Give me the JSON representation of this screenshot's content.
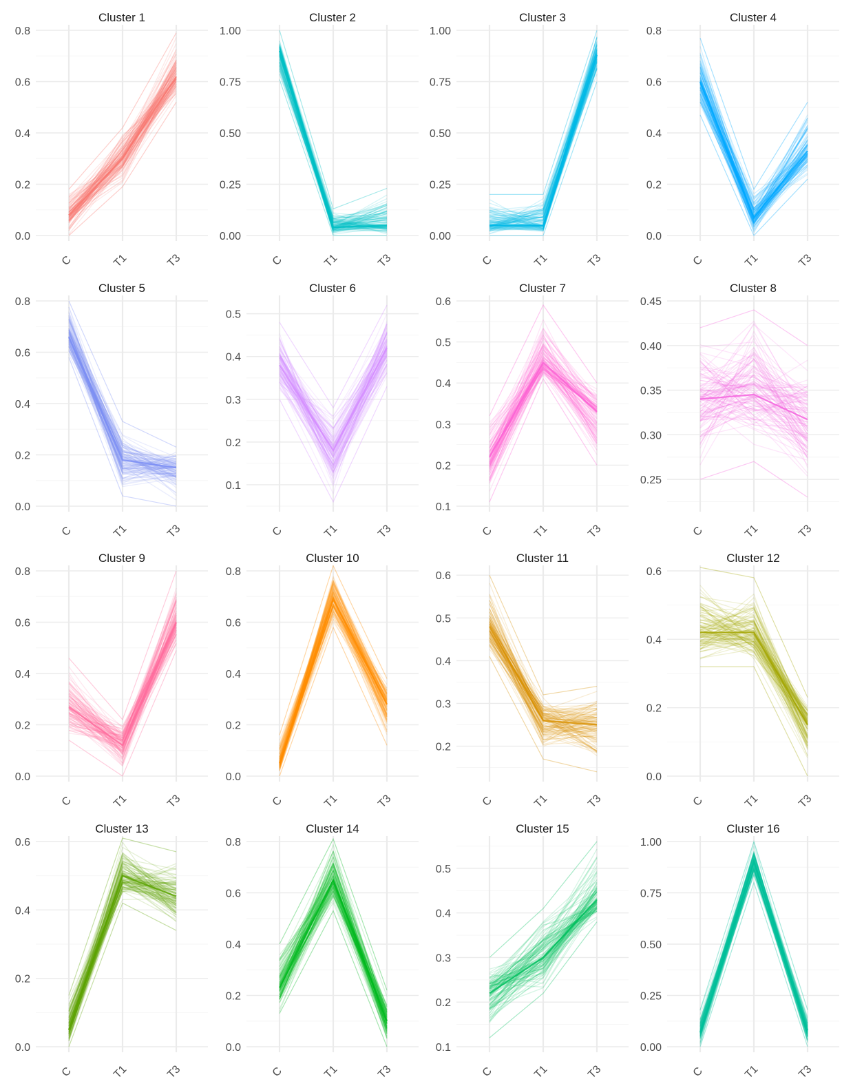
{
  "chart_data": [
    {
      "type": "line",
      "title": "Cluster 1",
      "categories": [
        "C",
        "T1",
        "T3"
      ],
      "yticks": [
        "0.0",
        "0.2",
        "0.4",
        "0.6",
        "0.8"
      ],
      "ylim": [
        0,
        0.8
      ],
      "color": "#F8766D",
      "ranges": [
        [
          0.0,
          0.18
        ],
        [
          0.19,
          0.42
        ],
        [
          0.52,
          0.79
        ]
      ],
      "median": [
        0.08,
        0.3,
        0.62
      ]
    },
    {
      "type": "line",
      "title": "Cluster 2",
      "categories": [
        "C",
        "T1",
        "T3"
      ],
      "yticks": [
        "0.00",
        "0.25",
        "0.50",
        "0.75",
        "1.00"
      ],
      "ylim": [
        0,
        1.0
      ],
      "color": "#00BFC4",
      "ranges": [
        [
          0.76,
          1.0
        ],
        [
          0.0,
          0.13
        ],
        [
          0.0,
          0.23
        ]
      ],
      "median": [
        0.9,
        0.04,
        0.05
      ]
    },
    {
      "type": "line",
      "title": "Cluster 3",
      "categories": [
        "C",
        "T1",
        "T3"
      ],
      "yticks": [
        "0.00",
        "0.25",
        "0.50",
        "0.75",
        "1.00"
      ],
      "ylim": [
        0,
        1.0
      ],
      "color": "#00B8E7",
      "ranges": [
        [
          0.0,
          0.2
        ],
        [
          0.0,
          0.2
        ],
        [
          0.75,
          1.0
        ]
      ],
      "median": [
        0.05,
        0.05,
        0.88
      ]
    },
    {
      "type": "line",
      "title": "Cluster 4",
      "categories": [
        "C",
        "T1",
        "T3"
      ],
      "yticks": [
        "0.0",
        "0.2",
        "0.4",
        "0.6",
        "0.8"
      ],
      "ylim": [
        0,
        0.8
      ],
      "color": "#00A9FF",
      "ranges": [
        [
          0.47,
          0.77
        ],
        [
          0.0,
          0.18
        ],
        [
          0.22,
          0.52
        ]
      ],
      "median": [
        0.6,
        0.07,
        0.33
      ]
    },
    {
      "type": "line",
      "title": "Cluster 5",
      "categories": [
        "C",
        "T1",
        "T3"
      ],
      "yticks": [
        "0.0",
        "0.2",
        "0.4",
        "0.6",
        "0.8"
      ],
      "ylim": [
        0,
        0.8
      ],
      "color": "#7B8EF5",
      "ranges": [
        [
          0.58,
          0.8
        ],
        [
          0.04,
          0.33
        ],
        [
          0.0,
          0.23
        ]
      ],
      "median": [
        0.66,
        0.18,
        0.15
      ]
    },
    {
      "type": "line",
      "title": "Cluster 6",
      "categories": [
        "C",
        "T1",
        "T3"
      ],
      "yticks": [
        "0.1",
        "0.2",
        "0.3",
        "0.4",
        "0.5"
      ],
      "ylim": [
        0.05,
        0.53
      ],
      "color": "#D58CFF",
      "ranges": [
        [
          0.3,
          0.48
        ],
        [
          0.06,
          0.28
        ],
        [
          0.33,
          0.52
        ]
      ],
      "median": [
        0.38,
        0.18,
        0.42
      ]
    },
    {
      "type": "line",
      "title": "Cluster 7",
      "categories": [
        "C",
        "T1",
        "T3"
      ],
      "yticks": [
        "0.1",
        "0.2",
        "0.3",
        "0.4",
        "0.5",
        "0.6"
      ],
      "ylim": [
        0.1,
        0.6
      ],
      "color": "#FC61D5",
      "ranges": [
        [
          0.11,
          0.32
        ],
        [
          0.41,
          0.59
        ],
        [
          0.2,
          0.4
        ]
      ],
      "median": [
        0.22,
        0.45,
        0.33
      ]
    },
    {
      "type": "line",
      "title": "Cluster 8",
      "categories": [
        "C",
        "T1",
        "T3"
      ],
      "yticks": [
        "0.25",
        "0.30",
        "0.35",
        "0.40",
        "0.45"
      ],
      "ylim": [
        0.22,
        0.45
      ],
      "color": "#F562DE",
      "ranges": [
        [
          0.25,
          0.42
        ],
        [
          0.27,
          0.44
        ],
        [
          0.23,
          0.4
        ]
      ],
      "median": [
        0.34,
        0.345,
        0.317
      ]
    },
    {
      "type": "line",
      "title": "Cluster 9",
      "categories": [
        "C",
        "T1",
        "T3"
      ],
      "yticks": [
        "0.0",
        "0.2",
        "0.4",
        "0.6",
        "0.8"
      ],
      "ylim": [
        0,
        0.8
      ],
      "color": "#FF6C9E",
      "ranges": [
        [
          0.14,
          0.46
        ],
        [
          0.0,
          0.22
        ],
        [
          0.49,
          0.8
        ]
      ],
      "median": [
        0.27,
        0.12,
        0.6
      ]
    },
    {
      "type": "line",
      "title": "Cluster 10",
      "categories": [
        "C",
        "T1",
        "T3"
      ],
      "yticks": [
        "0.0",
        "0.2",
        "0.4",
        "0.6",
        "0.8"
      ],
      "ylim": [
        0,
        0.8
      ],
      "color": "#FF8C00",
      "ranges": [
        [
          0.0,
          0.16
        ],
        [
          0.58,
          0.82
        ],
        [
          0.12,
          0.38
        ]
      ],
      "median": [
        0.05,
        0.69,
        0.28
      ]
    },
    {
      "type": "line",
      "title": "Cluster 11",
      "categories": [
        "C",
        "T1",
        "T3"
      ],
      "yticks": [
        "0.2",
        "0.3",
        "0.4",
        "0.5",
        "0.6"
      ],
      "ylim": [
        0.13,
        0.61
      ],
      "color": "#D89000",
      "ranges": [
        [
          0.41,
          0.6
        ],
        [
          0.17,
          0.32
        ],
        [
          0.14,
          0.34
        ]
      ],
      "median": [
        0.48,
        0.26,
        0.25
      ]
    },
    {
      "type": "line",
      "title": "Cluster 12",
      "categories": [
        "C",
        "T1",
        "T3"
      ],
      "yticks": [
        "0.0",
        "0.2",
        "0.4",
        "0.6"
      ],
      "ylim": [
        0,
        0.6
      ],
      "color": "#A3A500",
      "ranges": [
        [
          0.32,
          0.61
        ],
        [
          0.32,
          0.58
        ],
        [
          0.0,
          0.23
        ]
      ],
      "median": [
        0.42,
        0.42,
        0.15
      ]
    },
    {
      "type": "line",
      "title": "Cluster 13",
      "categories": [
        "C",
        "T1",
        "T3"
      ],
      "yticks": [
        "0.0",
        "0.2",
        "0.4",
        "0.6"
      ],
      "ylim": [
        0,
        0.6
      ],
      "color": "#5BA300",
      "ranges": [
        [
          0.0,
          0.15
        ],
        [
          0.42,
          0.61
        ],
        [
          0.34,
          0.57
        ]
      ],
      "median": [
        0.05,
        0.5,
        0.44
      ]
    },
    {
      "type": "line",
      "title": "Cluster 14",
      "categories": [
        "C",
        "T1",
        "T3"
      ],
      "yticks": [
        "0.0",
        "0.2",
        "0.4",
        "0.6",
        "0.8"
      ],
      "ylim": [
        0,
        0.8
      ],
      "color": "#00B81F",
      "ranges": [
        [
          0.13,
          0.4
        ],
        [
          0.53,
          0.81
        ],
        [
          0.0,
          0.22
        ]
      ],
      "median": [
        0.23,
        0.65,
        0.1
      ]
    },
    {
      "type": "line",
      "title": "Cluster 15",
      "categories": [
        "C",
        "T1",
        "T3"
      ],
      "yticks": [
        "0.1",
        "0.2",
        "0.3",
        "0.4",
        "0.5"
      ],
      "ylim": [
        0.1,
        0.56
      ],
      "color": "#00C05E",
      "ranges": [
        [
          0.12,
          0.3
        ],
        [
          0.22,
          0.41
        ],
        [
          0.38,
          0.56
        ]
      ],
      "median": [
        0.22,
        0.3,
        0.43
      ]
    },
    {
      "type": "line",
      "title": "Cluster 16",
      "categories": [
        "C",
        "T1",
        "T3"
      ],
      "yticks": [
        "0.00",
        "0.25",
        "0.50",
        "0.75",
        "1.00"
      ],
      "ylim": [
        0,
        1.0
      ],
      "color": "#00BF9A",
      "ranges": [
        [
          0.0,
          0.18
        ],
        [
          0.8,
          1.0
        ],
        [
          0.0,
          0.18
        ]
      ],
      "median": [
        0.07,
        0.9,
        0.08
      ]
    }
  ]
}
